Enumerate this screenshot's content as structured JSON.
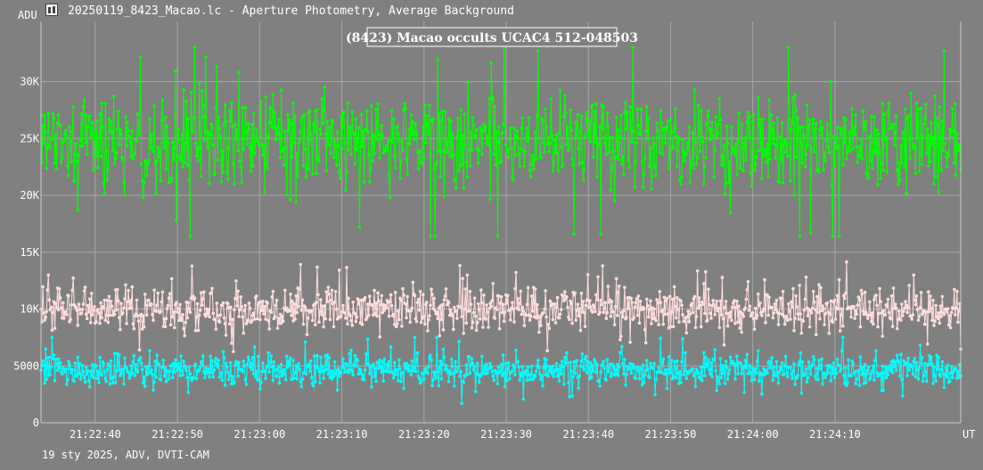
{
  "window": {
    "title": "20250119_8423_Macao.lc - Aperture Photometry, Average Background",
    "icon": "lightcurve-app-icon"
  },
  "footer": {
    "text": "19 sty 2025, ADV, DVTI-CAM"
  },
  "colors": {
    "background": "#808080",
    "grid": "#a8a8a8",
    "target": "#00ff00",
    "comparison": "#ffdddd",
    "background_series": "#00ffff"
  },
  "chart_data": {
    "type": "scatter",
    "title": "(8423) Macao occults UCAC4 512-048503",
    "ylabel": "ADU",
    "xlabel": "UT",
    "ylim": [
      0,
      35300
    ],
    "xlim": [
      "21:22:33.4",
      "21:24:25.3"
    ],
    "y_ticks": [
      "0",
      "5000",
      "10K",
      "15K",
      "20K",
      "25K",
      "30K"
    ],
    "y_tick_values": [
      0,
      5000,
      10000,
      15000,
      20000,
      25000,
      30000
    ],
    "x_ticks": [
      "21:22:40",
      "21:22:50",
      "21:23:00",
      "21:23:10",
      "21:23:20",
      "21:23:30",
      "21:23:40",
      "21:23:50",
      "21:24:00",
      "21:24:10"
    ],
    "grid": true,
    "points_per_series": 1000,
    "series": [
      {
        "role": "target",
        "color": "#00ff00",
        "style": "line-with-points",
        "mean": 24700,
        "min": 16400,
        "max": 33000,
        "typical_range": [
          20500,
          29000
        ]
      },
      {
        "role": "comparison",
        "color": "#ffdddd",
        "style": "line-with-points",
        "mean": 10000,
        "min": 6000,
        "max": 15000,
        "typical_range": [
          8200,
          12000
        ]
      },
      {
        "role": "background",
        "color": "#00ffff",
        "style": "line-with-points",
        "mean": 4600,
        "min": 1300,
        "max": 7500,
        "typical_range": [
          3200,
          6000
        ]
      }
    ]
  }
}
